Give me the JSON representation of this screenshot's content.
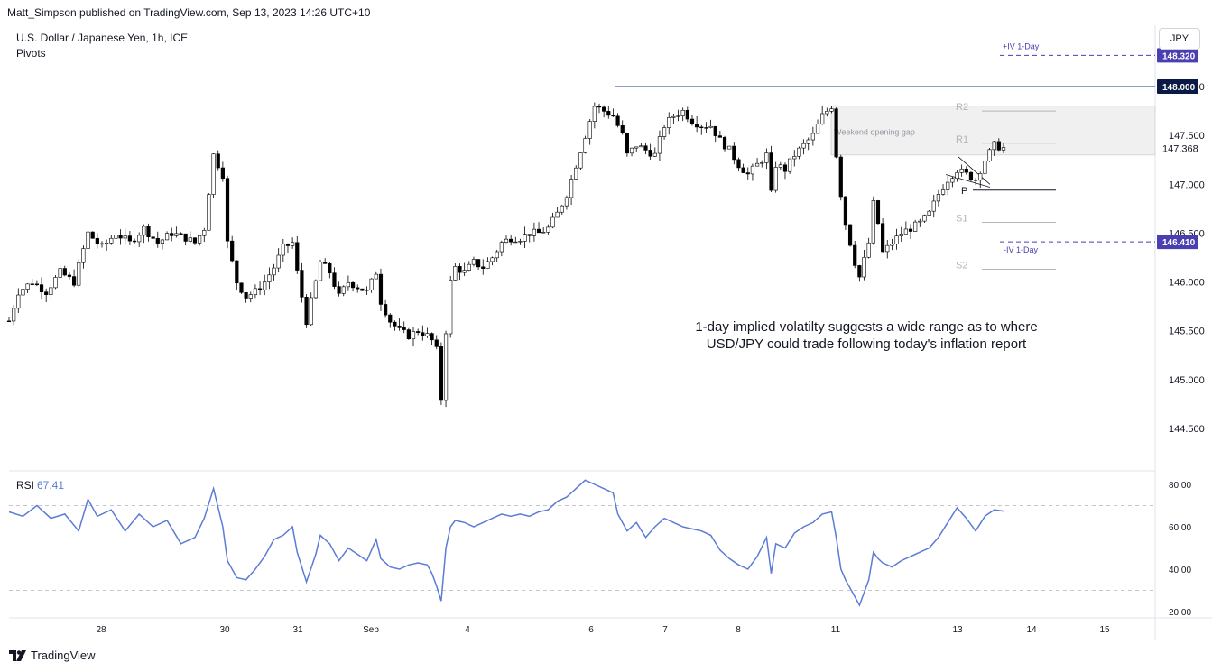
{
  "header": {
    "published": "Matt_Simpson published on TradingView.com, Sep 13, 2023 14:26 UTC+10",
    "symbol_title": "U.S. Dollar / Japanese Yen, 1h, ICE",
    "indicator": "Pivots",
    "currency_button": "JPY"
  },
  "rsi": {
    "label": "RSI",
    "value": "67.41"
  },
  "annotation": {
    "line1": "1-day implied volatilty suggests a wide range as to where",
    "line2": "USD/JPY could trade following today's inflation report"
  },
  "footer": {
    "brand": "TradingView"
  },
  "colors": {
    "candle": "#000000",
    "rsi_line": "#5b7bd5",
    "iv_label": "#4a3fb0",
    "price_tag_dark": "#0b1a44",
    "resistance_line": "#1e3a8a",
    "pivot_grey": "#b2b5be",
    "gap_fill": "#f0f0f0"
  },
  "chart_data": [
    {
      "type": "candlestick",
      "title": "U.S. Dollar / Japanese Yen, 1h, ICE",
      "y_axis": {
        "ticks": [
          144.5,
          145.0,
          145.5,
          146.0,
          146.5,
          147.0,
          147.5,
          148.0
        ],
        "tick_labels": [
          "144.500",
          "145.000",
          "145.500",
          "146.000",
          "146.500",
          "147.000",
          "147.500",
          "148.000"
        ],
        "ylim": [
          144.1,
          148.6
        ]
      },
      "x_axis": {
        "tick_labels": [
          "28",
          "30",
          "31",
          "Sep",
          "4",
          "6",
          "7",
          "8",
          "11",
          "13",
          "14",
          "15"
        ]
      },
      "close_path": [
        [
          0,
          145.6
        ],
        [
          2,
          145.9
        ],
        [
          5,
          146.0
        ],
        [
          8,
          145.9
        ],
        [
          11,
          146.1
        ],
        [
          14,
          146.0
        ],
        [
          17,
          146.5
        ],
        [
          20,
          146.35
        ],
        [
          23,
          146.5
        ],
        [
          26,
          146.4
        ],
        [
          29,
          146.55
        ],
        [
          32,
          146.4
        ],
        [
          35,
          146.5
        ],
        [
          38,
          146.45
        ],
        [
          40,
          146.4
        ],
        [
          42,
          146.55
        ],
        [
          44,
          147.3
        ],
        [
          46,
          147.1
        ],
        [
          47,
          146.4
        ],
        [
          49,
          146.0
        ],
        [
          51,
          145.85
        ],
        [
          53,
          145.9
        ],
        [
          55,
          146.0
        ],
        [
          57,
          146.15
        ],
        [
          59,
          146.35
        ],
        [
          61,
          146.4
        ],
        [
          62,
          146.1
        ],
        [
          64,
          145.6
        ],
        [
          66,
          146.0
        ],
        [
          67,
          146.2
        ],
        [
          69,
          146.1
        ],
        [
          71,
          145.85
        ],
        [
          73,
          146.0
        ],
        [
          75,
          145.95
        ],
        [
          77,
          145.9
        ],
        [
          79,
          146.1
        ],
        [
          80,
          145.8
        ],
        [
          82,
          145.6
        ],
        [
          84,
          145.5
        ],
        [
          86,
          145.45
        ],
        [
          88,
          145.5
        ],
        [
          90,
          145.45
        ],
        [
          91,
          145.4
        ],
        [
          92,
          145.3
        ],
        [
          93,
          144.8
        ],
        [
          94,
          145.5
        ],
        [
          95,
          146.0
        ],
        [
          96,
          146.15
        ],
        [
          98,
          146.1
        ],
        [
          100,
          146.2
        ],
        [
          102,
          146.15
        ],
        [
          104,
          146.25
        ],
        [
          106,
          146.4
        ],
        [
          108,
          146.45
        ],
        [
          110,
          146.45
        ],
        [
          112,
          146.5
        ],
        [
          114,
          146.5
        ],
        [
          116,
          146.55
        ],
        [
          118,
          146.7
        ],
        [
          120,
          146.9
        ],
        [
          122,
          147.2
        ],
        [
          124,
          147.5
        ],
        [
          126,
          147.8
        ],
        [
          128,
          147.75
        ],
        [
          130,
          147.7
        ],
        [
          132,
          147.5
        ],
        [
          133,
          147.3
        ],
        [
          135,
          147.4
        ],
        [
          137,
          147.35
        ],
        [
          139,
          147.3
        ],
        [
          141,
          147.6
        ],
        [
          143,
          147.7
        ],
        [
          145,
          147.75
        ],
        [
          147,
          147.65
        ],
        [
          149,
          147.6
        ],
        [
          151,
          147.6
        ],
        [
          153,
          147.45
        ],
        [
          155,
          147.35
        ],
        [
          157,
          147.2
        ],
        [
          159,
          147.1
        ],
        [
          161,
          147.2
        ],
        [
          163,
          147.3
        ],
        [
          164,
          146.9
        ],
        [
          165,
          147.2
        ],
        [
          167,
          147.15
        ],
        [
          169,
          147.3
        ],
        [
          171,
          147.4
        ],
        [
          173,
          147.5
        ],
        [
          175,
          147.7
        ],
        [
          177,
          147.8
        ],
        [
          178,
          147.3
        ],
        [
          179,
          146.9
        ],
        [
          180,
          146.6
        ],
        [
          182,
          146.2
        ],
        [
          183,
          146.05
        ],
        [
          185,
          146.4
        ],
        [
          186,
          146.8
        ],
        [
          187,
          146.6
        ],
        [
          188,
          146.3
        ],
        [
          190,
          146.4
        ],
        [
          192,
          146.5
        ],
        [
          194,
          146.55
        ],
        [
          196,
          146.6
        ],
        [
          198,
          146.7
        ],
        [
          200,
          146.9
        ],
        [
          202,
          147.05
        ],
        [
          204,
          147.15
        ],
        [
          206,
          147.1
        ],
        [
          208,
          147.05
        ],
        [
          210,
          147.25
        ],
        [
          212,
          147.4
        ],
        [
          214,
          147.37
        ]
      ],
      "pivots": {
        "R2": 147.75,
        "R1": 147.42,
        "P": 146.94,
        "S1": 146.61,
        "S2": 146.13
      },
      "pivot_labels": [
        "R2",
        "R1",
        "P",
        "S1",
        "S2"
      ],
      "weekend_gap": {
        "label": "Weekend opening gap",
        "from": 147.3,
        "to": 147.8
      },
      "resistance": 148.0,
      "implied_volatility": {
        "upper": 148.32,
        "lower": 146.41,
        "upper_label": "+IV 1-Day",
        "lower_label": "-IV 1-Day"
      },
      "price_tags": [
        {
          "label": "148.320",
          "value": 148.32,
          "style": "iv"
        },
        {
          "label": "148.000",
          "value": 148.0,
          "style": "dark"
        },
        {
          "label": "147.368",
          "value": 147.368,
          "style": "plain"
        },
        {
          "label": "146.410",
          "value": 146.41,
          "style": "iv"
        }
      ],
      "last": 147.368
    },
    {
      "type": "line",
      "title": "RSI",
      "y_axis": {
        "ticks": [
          20,
          40,
          60,
          80
        ],
        "tick_labels": [
          "20.00",
          "40.00",
          "60.00",
          "80.00"
        ],
        "ylim": [
          19,
          84
        ],
        "bands": [
          30,
          50,
          70
        ]
      },
      "series": [
        {
          "name": "RSI",
          "points": [
            [
              0,
              67
            ],
            [
              3,
              65
            ],
            [
              6,
              70
            ],
            [
              9,
              64
            ],
            [
              12,
              66
            ],
            [
              15,
              58
            ],
            [
              17,
              73
            ],
            [
              19,
              65
            ],
            [
              22,
              68
            ],
            [
              25,
              58
            ],
            [
              28,
              66
            ],
            [
              31,
              60
            ],
            [
              34,
              63
            ],
            [
              37,
              52
            ],
            [
              40,
              55
            ],
            [
              42,
              64
            ],
            [
              44,
              78
            ],
            [
              46,
              60
            ],
            [
              47,
              44
            ],
            [
              49,
              36
            ],
            [
              51,
              35
            ],
            [
              53,
              40
            ],
            [
              55,
              46
            ],
            [
              57,
              54
            ],
            [
              59,
              56
            ],
            [
              61,
              60
            ],
            [
              62,
              48
            ],
            [
              64,
              34
            ],
            [
              66,
              47
            ],
            [
              67,
              56
            ],
            [
              69,
              52
            ],
            [
              71,
              44
            ],
            [
              73,
              50
            ],
            [
              75,
              47
            ],
            [
              77,
              44
            ],
            [
              79,
              54
            ],
            [
              80,
              45
            ],
            [
              82,
              41
            ],
            [
              84,
              40
            ],
            [
              86,
              42
            ],
            [
              88,
              43
            ],
            [
              90,
              42
            ],
            [
              91,
              38
            ],
            [
              92,
              32
            ],
            [
              93,
              25
            ],
            [
              94,
              50
            ],
            [
              95,
              60
            ],
            [
              96,
              63
            ],
            [
              98,
              62
            ],
            [
              100,
              60
            ],
            [
              102,
              62
            ],
            [
              104,
              64
            ],
            [
              106,
              66
            ],
            [
              108,
              65
            ],
            [
              110,
              66
            ],
            [
              112,
              65
            ],
            [
              114,
              67
            ],
            [
              116,
              68
            ],
            [
              118,
              72
            ],
            [
              120,
              74
            ],
            [
              122,
              78
            ],
            [
              124,
              82
            ],
            [
              126,
              80
            ],
            [
              128,
              78
            ],
            [
              130,
              76
            ],
            [
              131,
              66
            ],
            [
              133,
              58
            ],
            [
              135,
              62
            ],
            [
              137,
              55
            ],
            [
              139,
              60
            ],
            [
              141,
              64
            ],
            [
              143,
              62
            ],
            [
              145,
              60
            ],
            [
              147,
              59
            ],
            [
              149,
              58
            ],
            [
              151,
              56
            ],
            [
              153,
              49
            ],
            [
              155,
              45
            ],
            [
              157,
              42
            ],
            [
              159,
              40
            ],
            [
              161,
              46
            ],
            [
              163,
              55
            ],
            [
              164,
              38
            ],
            [
              165,
              52
            ],
            [
              167,
              50
            ],
            [
              169,
              57
            ],
            [
              171,
              60
            ],
            [
              173,
              62
            ],
            [
              175,
              66
            ],
            [
              177,
              67
            ],
            [
              178,
              55
            ],
            [
              179,
              40
            ],
            [
              180,
              35
            ],
            [
              182,
              27
            ],
            [
              183,
              23
            ],
            [
              185,
              35
            ],
            [
              186,
              48
            ],
            [
              187,
              45
            ],
            [
              188,
              43
            ],
            [
              190,
              41
            ],
            [
              192,
              44
            ],
            [
              194,
              46
            ],
            [
              196,
              48
            ],
            [
              198,
              50
            ],
            [
              200,
              55
            ],
            [
              202,
              62
            ],
            [
              204,
              69
            ],
            [
              206,
              64
            ],
            [
              208,
              58
            ],
            [
              210,
              65
            ],
            [
              212,
              68
            ],
            [
              214,
              67.41
            ]
          ]
        }
      ],
      "value_label": "67.41"
    }
  ]
}
